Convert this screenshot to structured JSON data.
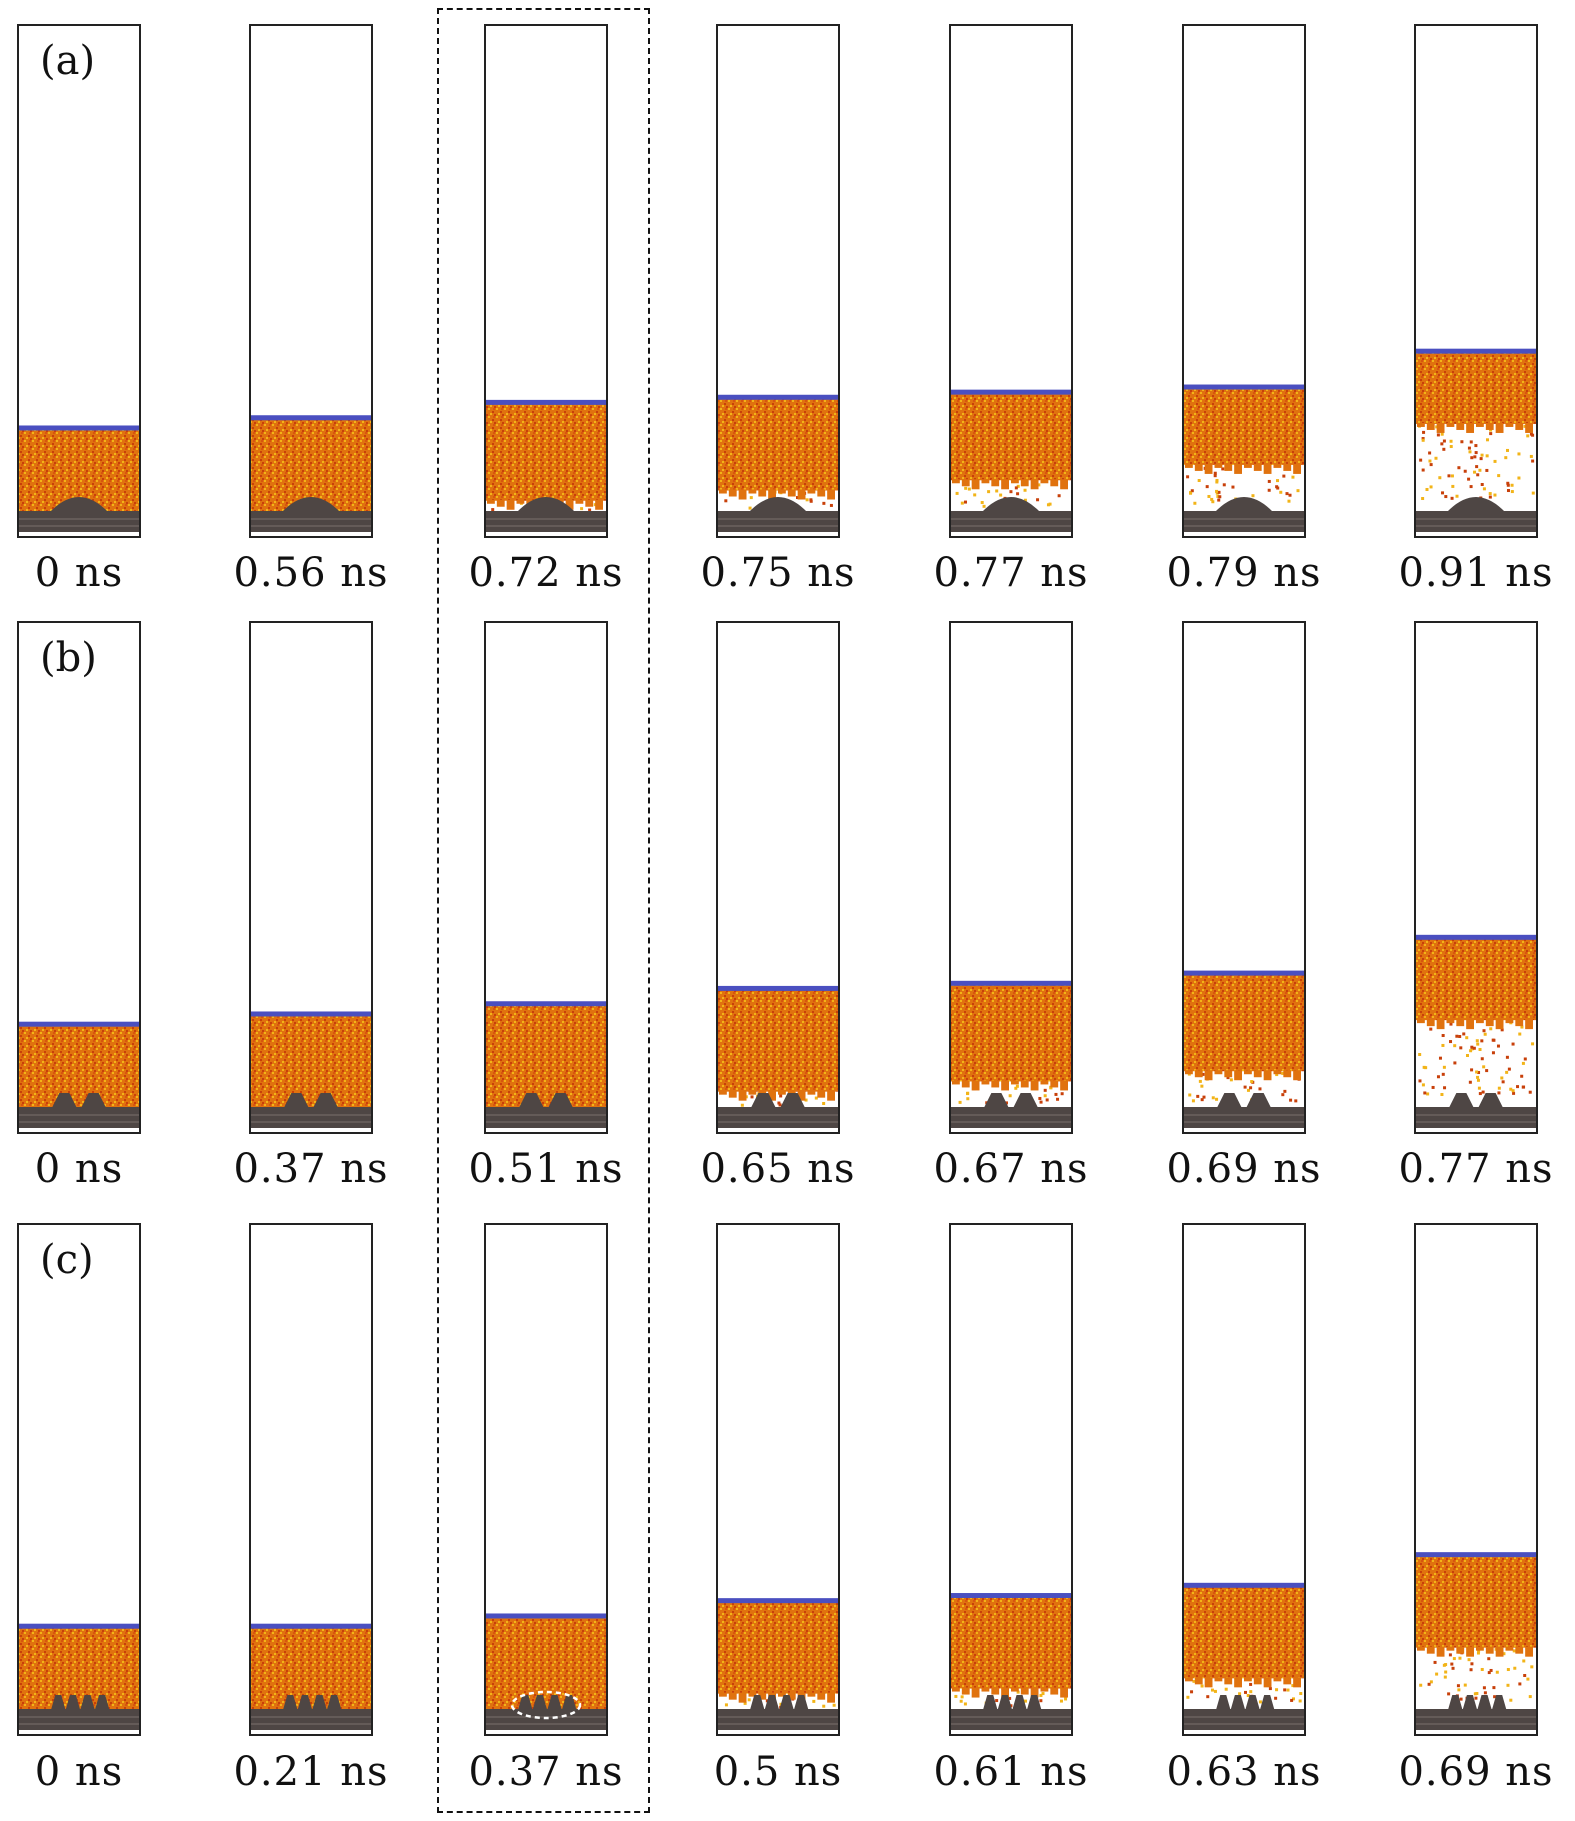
{
  "figure": {
    "panels": [
      {
        "label": "(a)",
        "roughness": "single-bump",
        "frames": [
          {
            "time": "0 ns",
            "liquid_height": 0.21,
            "gap": 0.0
          },
          {
            "time": "0.56 ns",
            "liquid_height": 0.23,
            "gap": 0.0
          },
          {
            "time": "0.72 ns",
            "liquid_height": 0.26,
            "gap": 0.02
          },
          {
            "time": "0.75 ns",
            "liquid_height": 0.27,
            "gap": 0.04
          },
          {
            "time": "0.77 ns",
            "liquid_height": 0.28,
            "gap": 0.06
          },
          {
            "time": "0.79 ns",
            "liquid_height": 0.29,
            "gap": 0.09
          },
          {
            "time": "0.91 ns",
            "liquid_height": 0.36,
            "gap": 0.17
          }
        ]
      },
      {
        "label": "(b)",
        "roughness": "two-bumps",
        "frames": [
          {
            "time": "0 ns",
            "liquid_height": 0.21,
            "gap": 0.0
          },
          {
            "time": "0.37 ns",
            "liquid_height": 0.23,
            "gap": 0.0
          },
          {
            "time": "0.51 ns",
            "liquid_height": 0.25,
            "gap": 0.0
          },
          {
            "time": "0.65 ns",
            "liquid_height": 0.28,
            "gap": 0.03
          },
          {
            "time": "0.67 ns",
            "liquid_height": 0.29,
            "gap": 0.05
          },
          {
            "time": "0.69 ns",
            "liquid_height": 0.31,
            "gap": 0.07
          },
          {
            "time": "0.77 ns",
            "liquid_height": 0.38,
            "gap": 0.17
          }
        ]
      },
      {
        "label": "(c)",
        "roughness": "four-bumps",
        "frames": [
          {
            "time": "0 ns",
            "liquid_height": 0.21,
            "gap": 0.0
          },
          {
            "time": "0.21 ns",
            "liquid_height": 0.21,
            "gap": 0.0
          },
          {
            "time": "0.37 ns",
            "liquid_height": 0.23,
            "gap": 0.0
          },
          {
            "time": "0.5 ns",
            "liquid_height": 0.26,
            "gap": 0.03
          },
          {
            "time": "0.61 ns",
            "liquid_height": 0.27,
            "gap": 0.04
          },
          {
            "time": "0.63 ns",
            "liquid_height": 0.29,
            "gap": 0.06
          },
          {
            "time": "0.69 ns",
            "liquid_height": 0.35,
            "gap": 0.12
          }
        ]
      }
    ],
    "highlighted_column": 2,
    "colors": {
      "liquid_dark": "#c8400a",
      "liquid_mid": "#e0720e",
      "liquid_light": "#f2b418",
      "interface": "#4a4fc0",
      "wall": "#4e4644",
      "frame_border": "#222222"
    }
  }
}
